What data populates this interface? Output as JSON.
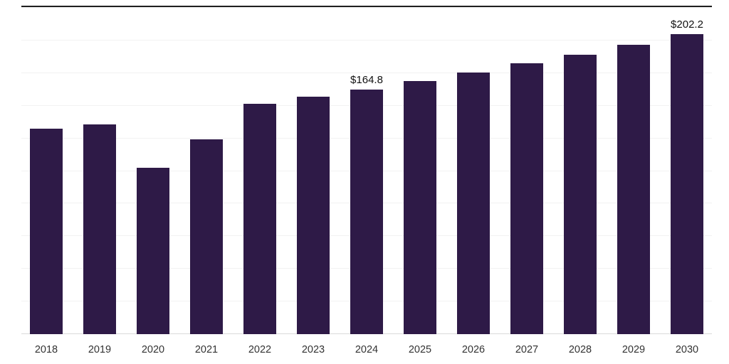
{
  "chart_data": {
    "type": "bar",
    "title": "",
    "xlabel": "",
    "ylabel": "",
    "categories": [
      "2018",
      "2019",
      "2020",
      "2021",
      "2022",
      "2023",
      "2024",
      "2025",
      "2026",
      "2027",
      "2028",
      "2029",
      "2030"
    ],
    "values": [
      138.5,
      141.5,
      112.0,
      131.5,
      155.5,
      160.0,
      164.8,
      170.5,
      176.5,
      182.5,
      188.5,
      195.0,
      202.2
    ],
    "data_labels": [
      "",
      "",
      "",
      "",
      "",
      "",
      "$164.8",
      "",
      "",
      "",
      "",
      "",
      "$202.2"
    ],
    "ylim": [
      0,
      220
    ],
    "grid": "horizontal",
    "legend": "none",
    "bar_color": "#2e1a47",
    "label_color": "#111111",
    "axis_text_color": "#333333",
    "gridline_color": "#f2f2f2",
    "gridline_count": 10
  }
}
